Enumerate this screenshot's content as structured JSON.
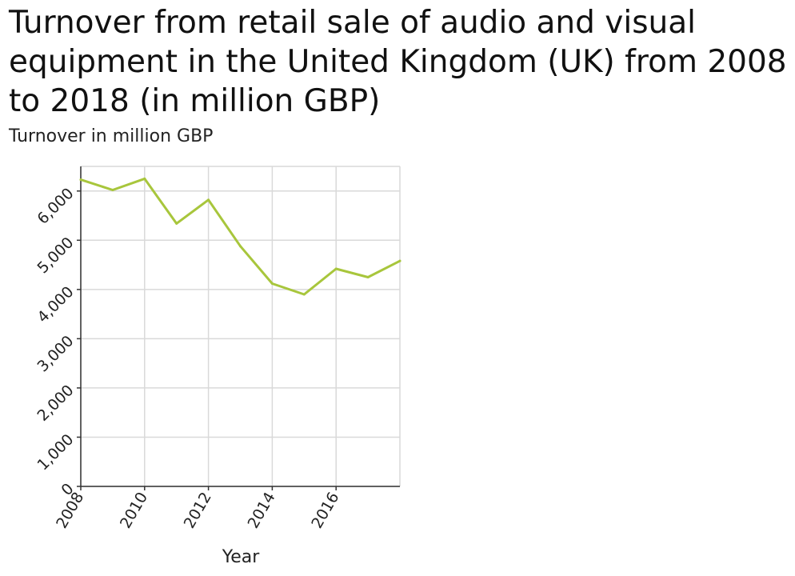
{
  "chart_data": {
    "type": "line",
    "title": "Turnover from retail sale of audio and visual equipment in the United Kingdom (UK) from 2008 to 2018 (in million GBP)",
    "xlabel": "Year",
    "ylabel": "Turnover in million GBP",
    "xlim": [
      2008,
      2018
    ],
    "ylim": [
      0,
      6500
    ],
    "x_ticks": [
      2008,
      2010,
      2012,
      2014,
      2016
    ],
    "y_ticks": [
      0,
      1000,
      2000,
      3000,
      4000,
      5000,
      6000
    ],
    "x_tick_labels": [
      "2008",
      "2010",
      "2012",
      "2014",
      "2016"
    ],
    "y_tick_labels": [
      "0",
      "1,000",
      "2,000",
      "3,000",
      "4,000",
      "5,000",
      "6,000"
    ],
    "grid": true,
    "line_color": "#a8c63c",
    "series": [
      {
        "x": [
          2008,
          2009,
          2010,
          2011,
          2012,
          2013,
          2014,
          2015,
          2016,
          2017,
          2018
        ],
        "values": [
          6230,
          6020,
          6250,
          5340,
          5820,
          4880,
          4120,
          3900,
          4420,
          4250,
          4580
        ]
      }
    ]
  }
}
